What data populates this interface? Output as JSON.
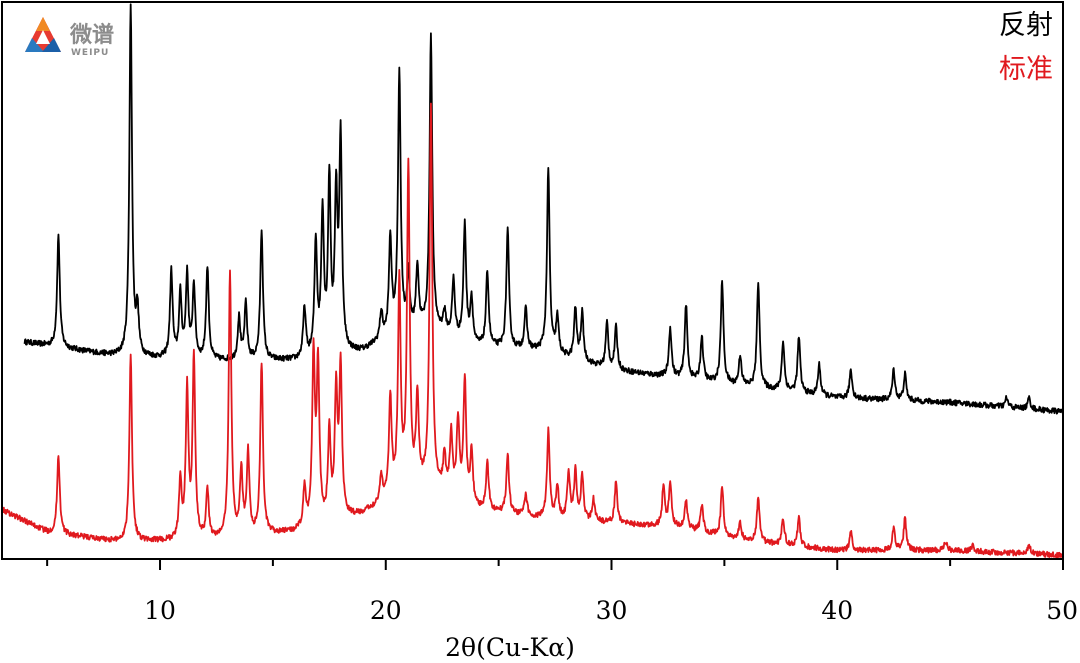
{
  "logo": {
    "cn": "微谱",
    "en": "WEIPU"
  },
  "legend": [
    {
      "name": "反射",
      "color": "#000000"
    },
    {
      "name": "标准",
      "color": "#e0191e"
    }
  ],
  "chart_data": {
    "type": "line",
    "xlabel": "2θ(Cu-Kα)",
    "ylabel": "",
    "xlim": [
      3,
      50
    ],
    "xticks": [
      10,
      20,
      30,
      40,
      50
    ],
    "yaxis_labels": false,
    "legend_position": "top-right",
    "grid": false,
    "series": [
      {
        "name": "反射",
        "color": "#000000",
        "x_start": 4.0,
        "baseline": [
          [
            4.0,
            0.28
          ],
          [
            8.0,
            0.25
          ],
          [
            12.0,
            0.24
          ],
          [
            16.0,
            0.24
          ],
          [
            19.0,
            0.26
          ],
          [
            20.5,
            0.3
          ],
          [
            22.0,
            0.31
          ],
          [
            24.0,
            0.27
          ],
          [
            27.0,
            0.26
          ],
          [
            30.0,
            0.22
          ],
          [
            35.0,
            0.19
          ],
          [
            40.0,
            0.16
          ],
          [
            45.0,
            0.15
          ],
          [
            50.0,
            0.13
          ]
        ],
        "peaks": [
          {
            "x": 5.5,
            "h": 0.51
          },
          {
            "x": 8.7,
            "h": 1.0
          },
          {
            "x": 9.0,
            "h": 0.34
          },
          {
            "x": 10.5,
            "h": 0.43
          },
          {
            "x": 10.9,
            "h": 0.38
          },
          {
            "x": 11.2,
            "h": 0.42
          },
          {
            "x": 11.5,
            "h": 0.4
          },
          {
            "x": 12.1,
            "h": 0.44
          },
          {
            "x": 13.5,
            "h": 0.33
          },
          {
            "x": 13.8,
            "h": 0.36
          },
          {
            "x": 14.5,
            "h": 0.52
          },
          {
            "x": 16.4,
            "h": 0.35
          },
          {
            "x": 16.9,
            "h": 0.49
          },
          {
            "x": 17.2,
            "h": 0.55
          },
          {
            "x": 17.5,
            "h": 0.62
          },
          {
            "x": 17.8,
            "h": 0.58
          },
          {
            "x": 18.0,
            "h": 0.71
          },
          {
            "x": 19.8,
            "h": 0.34
          },
          {
            "x": 20.2,
            "h": 0.5
          },
          {
            "x": 20.6,
            "h": 0.86
          },
          {
            "x": 21.0,
            "h": 0.42
          },
          {
            "x": 21.4,
            "h": 0.44
          },
          {
            "x": 22.0,
            "h": 0.94
          },
          {
            "x": 22.6,
            "h": 0.34
          },
          {
            "x": 23.0,
            "h": 0.41
          },
          {
            "x": 23.5,
            "h": 0.53
          },
          {
            "x": 23.8,
            "h": 0.37
          },
          {
            "x": 24.5,
            "h": 0.43
          },
          {
            "x": 25.4,
            "h": 0.52
          },
          {
            "x": 26.2,
            "h": 0.35
          },
          {
            "x": 27.2,
            "h": 0.65
          },
          {
            "x": 27.6,
            "h": 0.33
          },
          {
            "x": 28.4,
            "h": 0.35
          },
          {
            "x": 28.7,
            "h": 0.34
          },
          {
            "x": 29.8,
            "h": 0.32
          },
          {
            "x": 30.2,
            "h": 0.31
          },
          {
            "x": 32.6,
            "h": 0.31
          },
          {
            "x": 33.3,
            "h": 0.36
          },
          {
            "x": 34.0,
            "h": 0.29
          },
          {
            "x": 34.9,
            "h": 0.41
          },
          {
            "x": 35.7,
            "h": 0.25
          },
          {
            "x": 36.5,
            "h": 0.41
          },
          {
            "x": 37.6,
            "h": 0.28
          },
          {
            "x": 38.3,
            "h": 0.29
          },
          {
            "x": 39.2,
            "h": 0.23
          },
          {
            "x": 40.6,
            "h": 0.22
          },
          {
            "x": 42.5,
            "h": 0.22
          },
          {
            "x": 43.0,
            "h": 0.21
          },
          {
            "x": 47.5,
            "h": 0.16
          },
          {
            "x": 48.5,
            "h": 0.16
          }
        ]
      },
      {
        "name": "标准",
        "color": "#e0191e",
        "x_start": 3.0,
        "baseline": [
          [
            3.0,
            0.1
          ],
          [
            5.0,
            0.05
          ],
          [
            8.0,
            0.03
          ],
          [
            12.0,
            0.03
          ],
          [
            16.0,
            0.05
          ],
          [
            19.0,
            0.09
          ],
          [
            20.5,
            0.13
          ],
          [
            22.0,
            0.15
          ],
          [
            24.0,
            0.1
          ],
          [
            27.0,
            0.08
          ],
          [
            30.0,
            0.07
          ],
          [
            33.0,
            0.06
          ],
          [
            36.0,
            0.03
          ],
          [
            40.0,
            0.01
          ],
          [
            45.0,
            0.01
          ],
          [
            50.0,
            0.0
          ]
        ],
        "peaks": [
          {
            "x": 5.5,
            "h": 0.22
          },
          {
            "x": 8.7,
            "h": 0.44
          },
          {
            "x": 10.9,
            "h": 0.16
          },
          {
            "x": 11.2,
            "h": 0.36
          },
          {
            "x": 11.5,
            "h": 0.43
          },
          {
            "x": 12.1,
            "h": 0.14
          },
          {
            "x": 13.1,
            "h": 0.62
          },
          {
            "x": 13.6,
            "h": 0.18
          },
          {
            "x": 13.9,
            "h": 0.22
          },
          {
            "x": 14.5,
            "h": 0.42
          },
          {
            "x": 16.4,
            "h": 0.14
          },
          {
            "x": 16.8,
            "h": 0.43
          },
          {
            "x": 17.0,
            "h": 0.41
          },
          {
            "x": 17.5,
            "h": 0.26
          },
          {
            "x": 17.8,
            "h": 0.35
          },
          {
            "x": 18.0,
            "h": 0.41
          },
          {
            "x": 19.8,
            "h": 0.17
          },
          {
            "x": 20.2,
            "h": 0.34
          },
          {
            "x": 20.6,
            "h": 0.59
          },
          {
            "x": 21.0,
            "h": 0.85
          },
          {
            "x": 21.4,
            "h": 0.34
          },
          {
            "x": 22.0,
            "h": 0.98
          },
          {
            "x": 22.6,
            "h": 0.21
          },
          {
            "x": 22.9,
            "h": 0.26
          },
          {
            "x": 23.2,
            "h": 0.29
          },
          {
            "x": 23.5,
            "h": 0.38
          },
          {
            "x": 23.8,
            "h": 0.22
          },
          {
            "x": 24.5,
            "h": 0.2
          },
          {
            "x": 25.4,
            "h": 0.22
          },
          {
            "x": 26.2,
            "h": 0.13
          },
          {
            "x": 27.2,
            "h": 0.27
          },
          {
            "x": 27.6,
            "h": 0.15
          },
          {
            "x": 28.1,
            "h": 0.18
          },
          {
            "x": 28.4,
            "h": 0.18
          },
          {
            "x": 28.7,
            "h": 0.17
          },
          {
            "x": 29.2,
            "h": 0.12
          },
          {
            "x": 30.2,
            "h": 0.16
          },
          {
            "x": 32.3,
            "h": 0.15
          },
          {
            "x": 32.6,
            "h": 0.16
          },
          {
            "x": 33.3,
            "h": 0.12
          },
          {
            "x": 34.0,
            "h": 0.11
          },
          {
            "x": 34.9,
            "h": 0.15
          },
          {
            "x": 35.7,
            "h": 0.07
          },
          {
            "x": 36.5,
            "h": 0.13
          },
          {
            "x": 37.6,
            "h": 0.08
          },
          {
            "x": 38.3,
            "h": 0.08
          },
          {
            "x": 40.6,
            "h": 0.05
          },
          {
            "x": 42.5,
            "h": 0.06
          },
          {
            "x": 43.0,
            "h": 0.08
          },
          {
            "x": 44.8,
            "h": 0.03
          },
          {
            "x": 46.0,
            "h": 0.02
          },
          {
            "x": 48.5,
            "h": 0.02
          }
        ]
      }
    ]
  }
}
